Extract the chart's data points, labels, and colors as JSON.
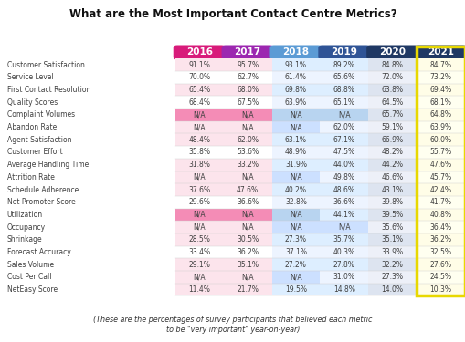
{
  "title": "What are the Most Important Contact Centre Metrics?",
  "subtitle": "(These are the percentages of survey participants that believed each metric\nto be \"very important\" year-on-year)",
  "columns": [
    "2016",
    "2017",
    "2018",
    "2019",
    "2020",
    "2021"
  ],
  "col_colors": [
    "#d81b7a",
    "#9c27b0",
    "#5b9bd5",
    "#2f5496",
    "#1f3864",
    "#1f3864"
  ],
  "col_header_text_colors": [
    "#ffffff",
    "#ffffff",
    "#ffffff",
    "#ffffff",
    "#ffffff",
    "#ffffff"
  ],
  "rows": [
    {
      "metric": "Customer Satisfaction",
      "values": [
        "91.1%",
        "95.7%",
        "93.1%",
        "89.2%",
        "84.8%",
        "84.7%"
      ]
    },
    {
      "metric": "Service Level",
      "values": [
        "70.0%",
        "62.7%",
        "61.4%",
        "65.6%",
        "72.0%",
        "73.2%"
      ]
    },
    {
      "metric": "First Contact Resolution",
      "values": [
        "65.4%",
        "68.0%",
        "69.8%",
        "68.8%",
        "63.8%",
        "69.4%"
      ]
    },
    {
      "metric": "Quality Scores",
      "values": [
        "68.4%",
        "67.5%",
        "63.9%",
        "65.1%",
        "64.5%",
        "68.1%"
      ]
    },
    {
      "metric": "Complaint Volumes",
      "values": [
        "N/A",
        "N/A",
        "N/A",
        "N/A",
        "65.7%",
        "64.8%"
      ]
    },
    {
      "metric": "Abandon Rate",
      "values": [
        "N/A",
        "N/A",
        "N/A",
        "62.0%",
        "59.1%",
        "63.9%"
      ]
    },
    {
      "metric": "Agent Satisfaction",
      "values": [
        "48.4%",
        "62.0%",
        "63.1%",
        "67.1%",
        "66.9%",
        "60.0%"
      ]
    },
    {
      "metric": "Customer Effort",
      "values": [
        "35.8%",
        "53.6%",
        "48.9%",
        "47.5%",
        "48.2%",
        "55.7%"
      ]
    },
    {
      "metric": "Average Handling Time",
      "values": [
        "31.8%",
        "33.2%",
        "31.9%",
        "44.0%",
        "44.2%",
        "47.6%"
      ]
    },
    {
      "metric": "Attrition Rate",
      "values": [
        "N/A",
        "N/A",
        "N/A",
        "49.8%",
        "46.6%",
        "45.7%"
      ]
    },
    {
      "metric": "Schedule Adherence",
      "values": [
        "37.6%",
        "47.6%",
        "40.2%",
        "48.6%",
        "43.1%",
        "42.4%"
      ]
    },
    {
      "metric": "Net Promoter Score",
      "values": [
        "29.6%",
        "36.6%",
        "32.8%",
        "36.6%",
        "39.8%",
        "41.7%"
      ]
    },
    {
      "metric": "Utilization",
      "values": [
        "N/A",
        "N/A",
        "N/A",
        "44.1%",
        "39.5%",
        "40.8%"
      ]
    },
    {
      "metric": "Occupancy",
      "values": [
        "N/A",
        "N/A",
        "N/A",
        "N/A",
        "35.6%",
        "36.4%"
      ]
    },
    {
      "metric": "Shrinkage",
      "values": [
        "28.5%",
        "30.5%",
        "27.3%",
        "35.7%",
        "35.1%",
        "36.2%"
      ]
    },
    {
      "metric": "Forecast Accuracy",
      "values": [
        "33.4%",
        "36.2%",
        "37.1%",
        "40.3%",
        "33.9%",
        "32.5%"
      ]
    },
    {
      "metric": "Sales Volume",
      "values": [
        "29.1%",
        "35.1%",
        "27.2%",
        "27.8%",
        "32.2%",
        "27.6%"
      ]
    },
    {
      "metric": "Cost Per Call",
      "values": [
        "N/A",
        "N/A",
        "N/A",
        "31.0%",
        "27.3%",
        "24.5%"
      ]
    },
    {
      "metric": "NetEasy Score",
      "values": [
        "11.4%",
        "21.7%",
        "19.5%",
        "14.8%",
        "14.0%",
        "10.3%"
      ]
    }
  ],
  "col_bg_normal": [
    "#fce4ec",
    "#fce4ec",
    "#ddeeff",
    "#ddeeff",
    "#dde4f0",
    "#fffde7"
  ],
  "col_bg_na": [
    "#f48cb6",
    "#f48cb6",
    "#b8d4f0",
    "#b8d4f0",
    "#b8c8e0",
    "#fffde7"
  ],
  "col_bg_normal_alt": [
    "#ffffff",
    "#ffffff",
    "#edf4ff",
    "#edf4ff",
    "#edf0f8",
    "#fffff0"
  ],
  "col_bg_na_alt": [
    "#fce4ec",
    "#fce4ec",
    "#cce0ff",
    "#cce0ff",
    "#ccd4e8",
    "#fffff0"
  ],
  "highlight_border_color": "#e8d800",
  "text_color_metric": "#404040",
  "text_color_value": "#404040",
  "font_family": "DejaVu Sans",
  "fig_width": 5.1,
  "fig_height": 3.75,
  "dpi": 100
}
